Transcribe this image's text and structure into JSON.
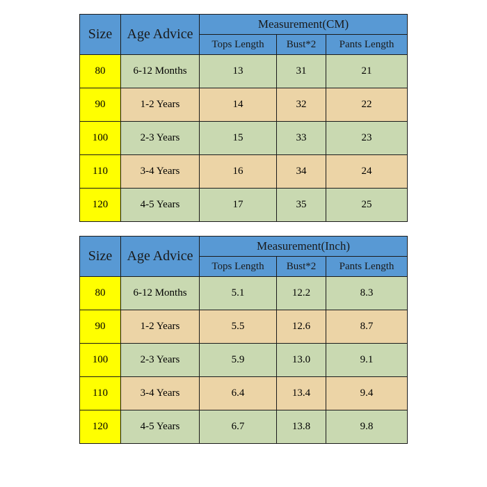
{
  "table_cm": {
    "type": "table",
    "header_bg": "#5899d4",
    "size_bg": "#ffff00",
    "row_even_bg": "#c9d9b1",
    "row_odd_bg": "#ecd4a6",
    "border_color": "#1a1a1a",
    "size_label": "Size",
    "age_label": "Age Advice",
    "measurement_label": "Measurement(CM)",
    "subcols": [
      "Tops Length",
      "Bust*2",
      "Pants Length"
    ],
    "rows": [
      {
        "size": "80",
        "age": "6-12 Months",
        "tops": "13",
        "bust": "31",
        "pants": "21"
      },
      {
        "size": "90",
        "age": "1-2 Years",
        "tops": "14",
        "bust": "32",
        "pants": "22"
      },
      {
        "size": "100",
        "age": "2-3 Years",
        "tops": "15",
        "bust": "33",
        "pants": "23"
      },
      {
        "size": "110",
        "age": "3-4 Years",
        "tops": "16",
        "bust": "34",
        "pants": "24"
      },
      {
        "size": "120",
        "age": "4-5 Years",
        "tops": "17",
        "bust": "35",
        "pants": "25"
      }
    ]
  },
  "table_inch": {
    "type": "table",
    "header_bg": "#5899d4",
    "size_bg": "#ffff00",
    "row_even_bg": "#c9d9b1",
    "row_odd_bg": "#ecd4a6",
    "border_color": "#1a1a1a",
    "size_label": "Size",
    "age_label": "Age Advice",
    "measurement_label": "Measurement(Inch)",
    "subcols": [
      "Tops Length",
      "Bust*2",
      "Pants Length"
    ],
    "rows": [
      {
        "size": "80",
        "age": "6-12 Months",
        "tops": "5.1",
        "bust": "12.2",
        "pants": "8.3"
      },
      {
        "size": "90",
        "age": "1-2 Years",
        "tops": "5.5",
        "bust": "12.6",
        "pants": "8.7"
      },
      {
        "size": "100",
        "age": "2-3 Years",
        "tops": "5.9",
        "bust": "13.0",
        "pants": "9.1"
      },
      {
        "size": "110",
        "age": "3-4 Years",
        "tops": "6.4",
        "bust": "13.4",
        "pants": "9.4"
      },
      {
        "size": "120",
        "age": "4-5 Years",
        "tops": "6.7",
        "bust": "13.8",
        "pants": "9.8"
      }
    ]
  }
}
